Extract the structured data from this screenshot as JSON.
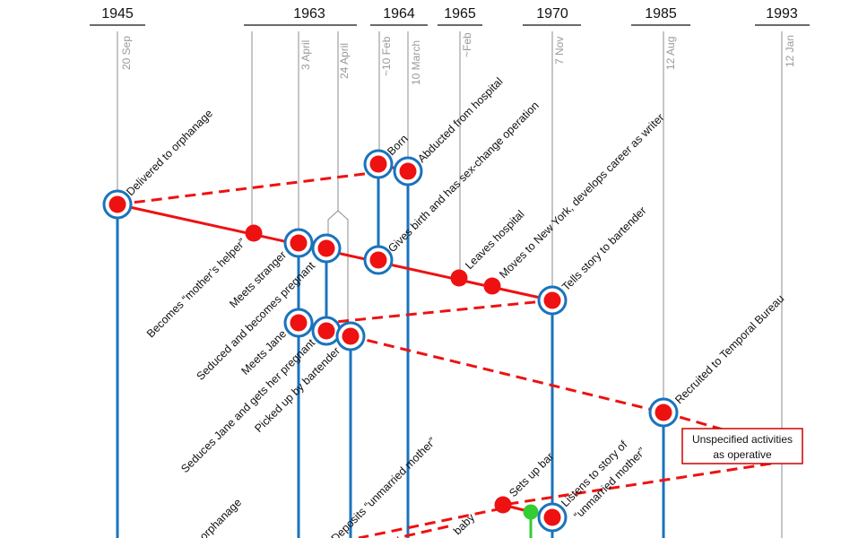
{
  "colors": {
    "red": "#ee1111",
    "blue": "#1a73bd",
    "green": "#33cc33",
    "grid": "#8c8c8c",
    "date": "#9a9a9a"
  },
  "years": [
    "1945",
    "1963",
    "1964",
    "1965",
    "1970",
    "1985",
    "1993"
  ],
  "dates": [
    "20 Sep",
    "3 April",
    "24 April",
    "~10 Feb",
    "10 March",
    "~Feb",
    "7 Nov",
    "12 Aug",
    "12 Jan"
  ],
  "events": {
    "delivered": "Delivered to orphanage",
    "born": "Born",
    "abducted": "Abducted from hospital",
    "gives_birth": "Gives birth and has sex-change operation",
    "leaves": "Leaves hospital",
    "new_york": "Moves to New York, develops career as writer",
    "tells": "Tells story to bartender",
    "mothers_helper": "Becomes “mother’s helper”",
    "meets_stranger": "Meets stranger",
    "seduced": "Seduced and becomes pregnant",
    "meets_jane": "Meets Jane",
    "seduces_jane": "Seduces Jane and gets her pregnant",
    "picked_up": "Picked up by bartender",
    "recruited": "Recruited to Temporal Bureau",
    "deposits": "Deposits “unmarried mother”",
    "sets_up_bar": "Sets up bar",
    "listens_1": "Listens to story of",
    "listens_2": "“unmarried mother”",
    "orphanage_partial": "orphanage",
    "baby_partial": "baby"
  },
  "box": {
    "line1": "Unspecified activities",
    "line2": "as operative"
  }
}
